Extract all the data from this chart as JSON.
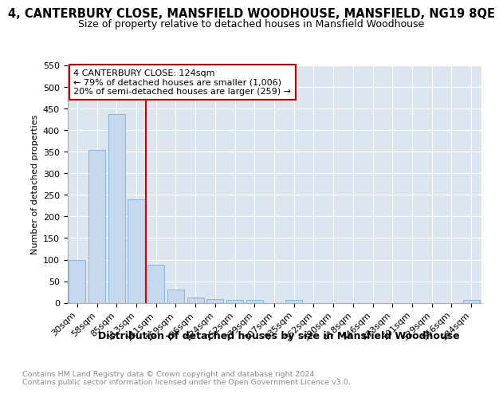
{
  "title": "4, CANTERBURY CLOSE, MANSFIELD WOODHOUSE, MANSFIELD, NG19 8QE",
  "subtitle": "Size of property relative to detached houses in Mansfield Woodhouse",
  "xlabel": "Distribution of detached houses by size in Mansfield Woodhouse",
  "ylabel": "Number of detached properties",
  "categories": [
    "30sqm",
    "58sqm",
    "85sqm",
    "113sqm",
    "141sqm",
    "169sqm",
    "196sqm",
    "224sqm",
    "252sqm",
    "279sqm",
    "307sqm",
    "335sqm",
    "362sqm",
    "390sqm",
    "418sqm",
    "446sqm",
    "473sqm",
    "501sqm",
    "529sqm",
    "556sqm",
    "584sqm"
  ],
  "values": [
    100,
    354,
    438,
    239,
    88,
    30,
    13,
    9,
    6,
    6,
    0,
    6,
    0,
    0,
    0,
    0,
    0,
    0,
    0,
    0,
    6
  ],
  "bar_color": "#c5d8ee",
  "bar_edge_color": "#7aafd4",
  "vline_x": 3.5,
  "vline_color": "#cc0000",
  "annotation_text": "4 CANTERBURY CLOSE: 124sqm\n← 79% of detached houses are smaller (1,006)\n20% of semi-detached houses are larger (259) →",
  "annotation_box_color": "#ffffff",
  "annotation_box_edge": "#cc0000",
  "ylim": [
    0,
    550
  ],
  "yticks": [
    0,
    50,
    100,
    150,
    200,
    250,
    300,
    350,
    400,
    450,
    500,
    550
  ],
  "bg_color": "#dce6f0",
  "grid_color": "#ffffff",
  "fig_bg_color": "#ffffff",
  "footer_text": "Contains HM Land Registry data © Crown copyright and database right 2024.\nContains public sector information licensed under the Open Government Licence v3.0.",
  "title_fontsize": 10.5,
  "subtitle_fontsize": 9,
  "xlabel_fontsize": 9,
  "ylabel_fontsize": 8,
  "tick_fontsize": 8,
  "annotation_fontsize": 8,
  "footer_fontsize": 6.8
}
